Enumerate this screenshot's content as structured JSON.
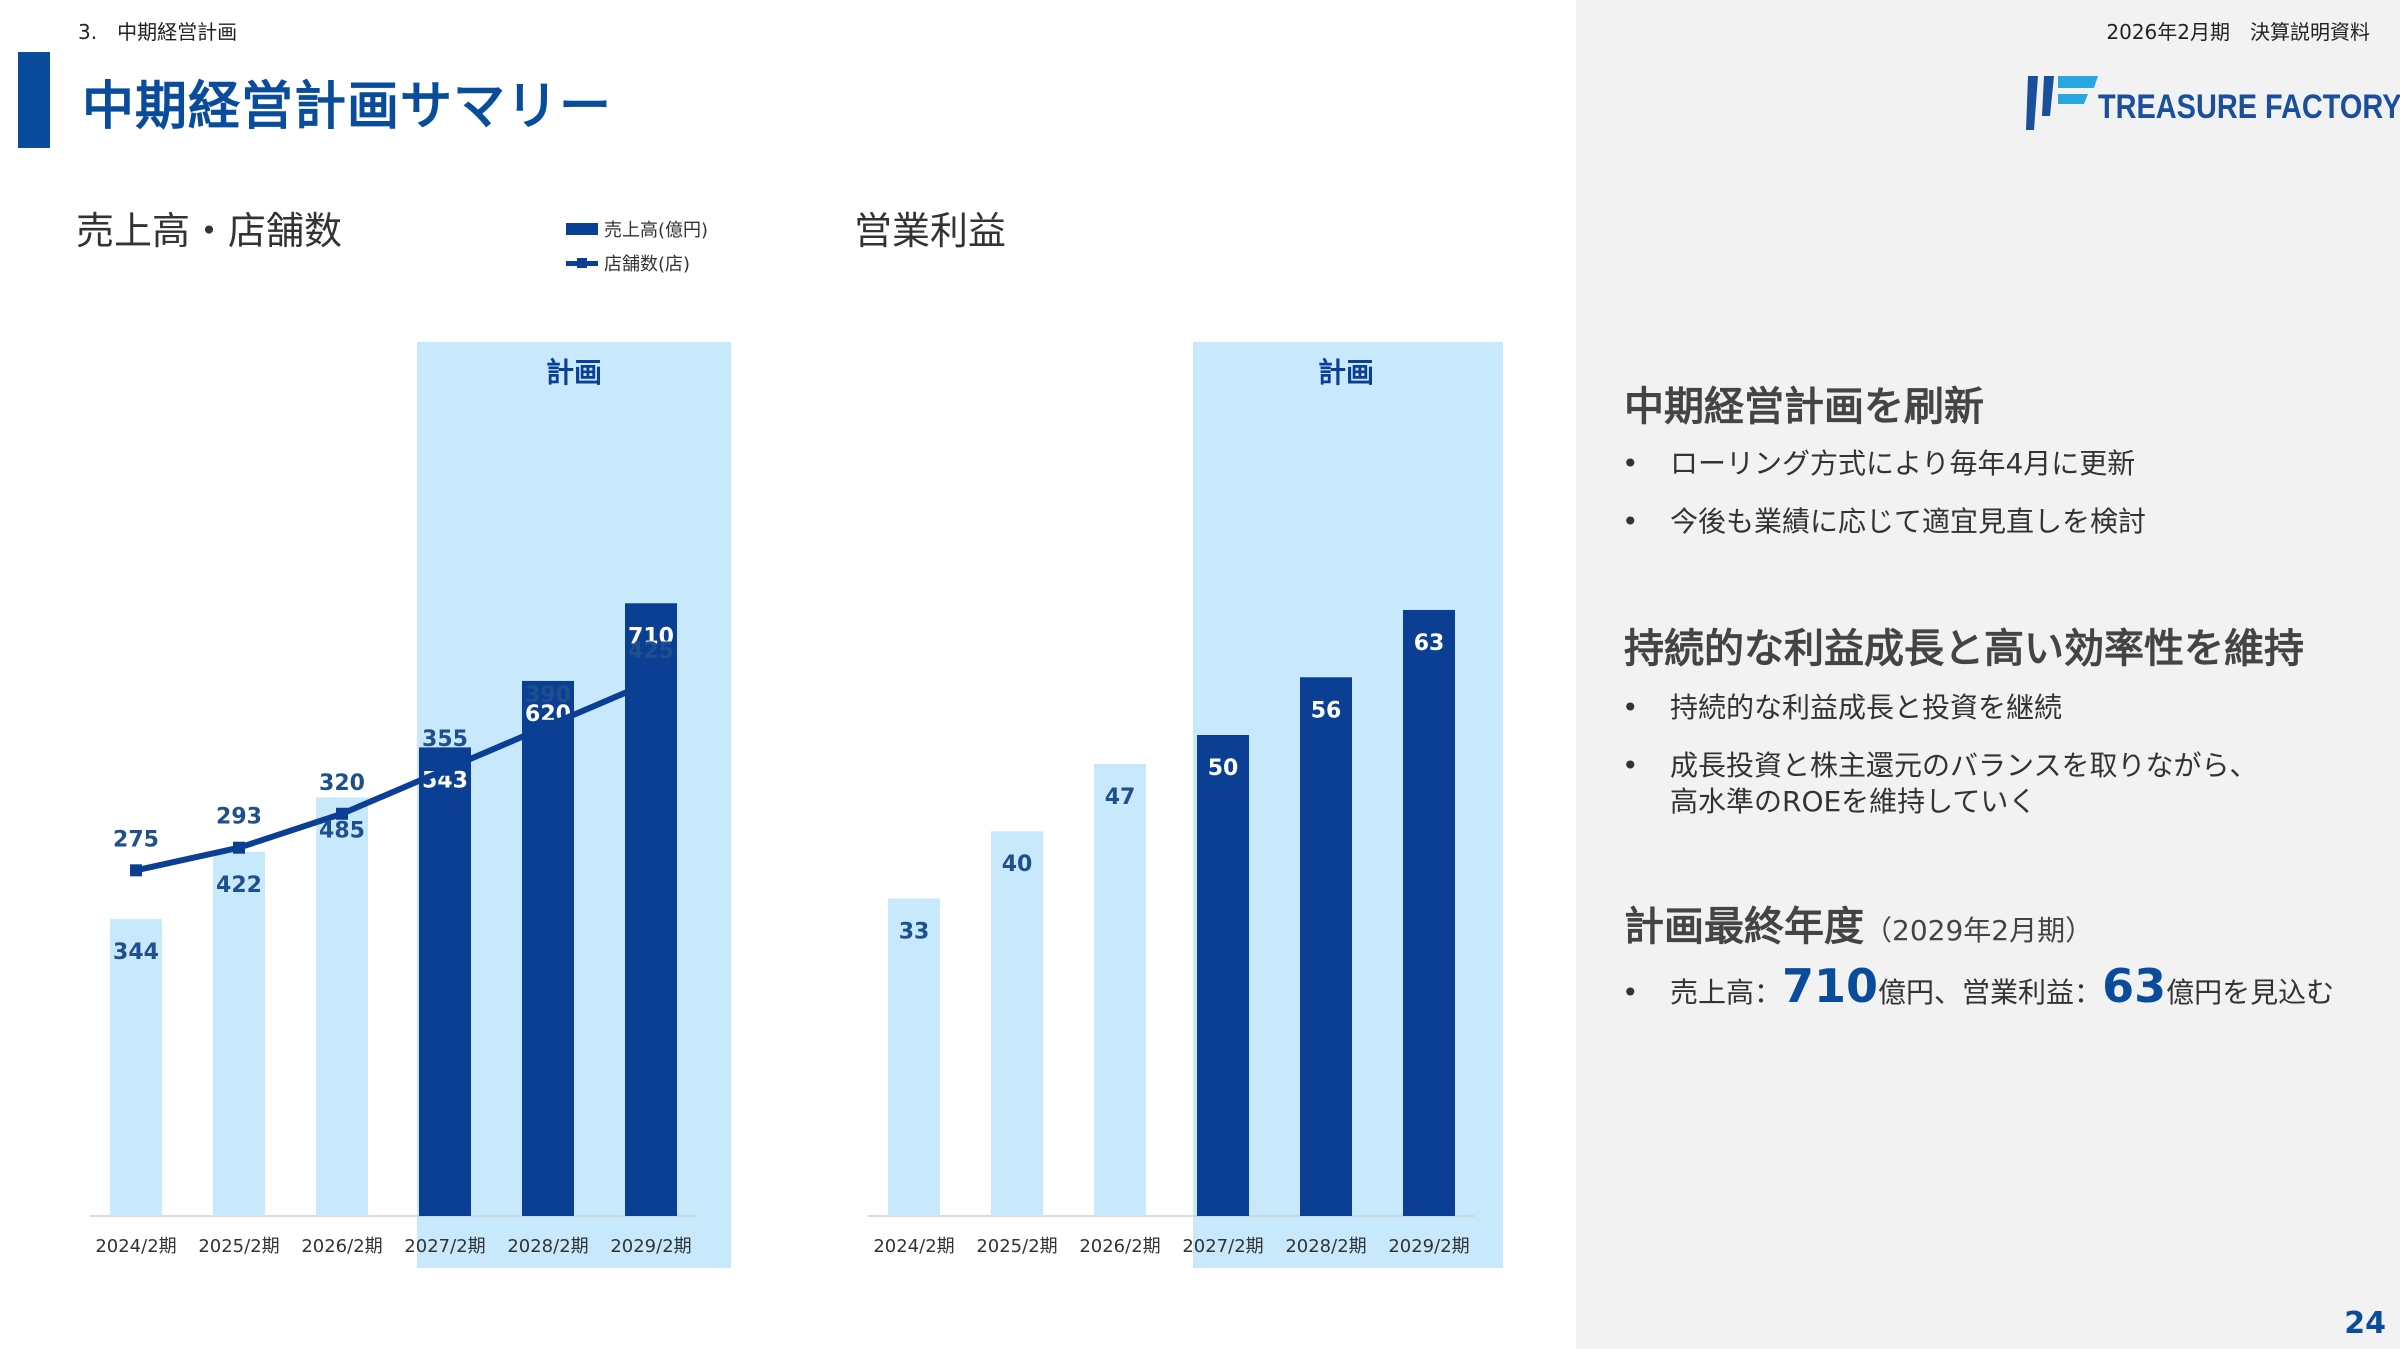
{
  "header": {
    "section": "3.　中期経営計画",
    "doc_title": "2026年2月期　決算説明資料",
    "page_title": "中期経営計画サマリー",
    "logo_text": "TREASURE FACTORY",
    "page_number": "24"
  },
  "colors": {
    "actual_bar": "#c7e9fb",
    "plan_bar": "#0a3f94",
    "plan_highlight": "#c7e9fb",
    "line": "#0a3f94",
    "accent": "#0a4c9c"
  },
  "chart_data": [
    {
      "type": "bar",
      "title": "売上高・店舗数",
      "categories": [
        "2024/2期",
        "2025/2期",
        "2026/2期",
        "2027/2期",
        "2028/2期",
        "2029/2期"
      ],
      "plan_label": "計画",
      "plan_categories": [
        "2027/2期",
        "2028/2期",
        "2029/2期"
      ],
      "series": [
        {
          "name": "売上高(億円)",
          "type": "bar",
          "values": [
            344,
            422,
            485,
            543,
            620,
            710
          ]
        },
        {
          "name": "店舗数(店)",
          "type": "line",
          "values": [
            275,
            293,
            320,
            355,
            390,
            425
          ]
        }
      ],
      "legend": "top-right"
    },
    {
      "type": "bar",
      "title": "営業利益",
      "categories": [
        "2024/2期",
        "2025/2期",
        "2026/2期",
        "2027/2期",
        "2028/2期",
        "2029/2期"
      ],
      "plan_label": "計画",
      "plan_categories": [
        "2027/2期",
        "2028/2期",
        "2029/2期"
      ],
      "series": [
        {
          "type": "bar",
          "values": [
            33,
            40,
            47,
            50,
            56,
            63
          ]
        }
      ]
    }
  ],
  "panel": {
    "heading1": "中期経営計画を刷新",
    "bullets1": [
      "ローリング方式により毎年4月に更新",
      "今後も業績に応じて適宜見直しを検討"
    ],
    "heading2": "持続的な利益成長と高い効率性を維持",
    "bullets2": [
      "持続的な利益成長と投資を継続",
      "成長投資と株主還元のバランスを取りながら、",
      "高水準のROEを維持していく"
    ],
    "heading3": "計画最終年度",
    "heading3_sub": "（2029年2月期）",
    "final": {
      "sales_label": "売上高：",
      "sales_value": "710",
      "sales_unit": "億円、営業利益：",
      "profit_value": "63",
      "profit_unit": "億円を見込む"
    },
    "bullet_mark": "•"
  }
}
